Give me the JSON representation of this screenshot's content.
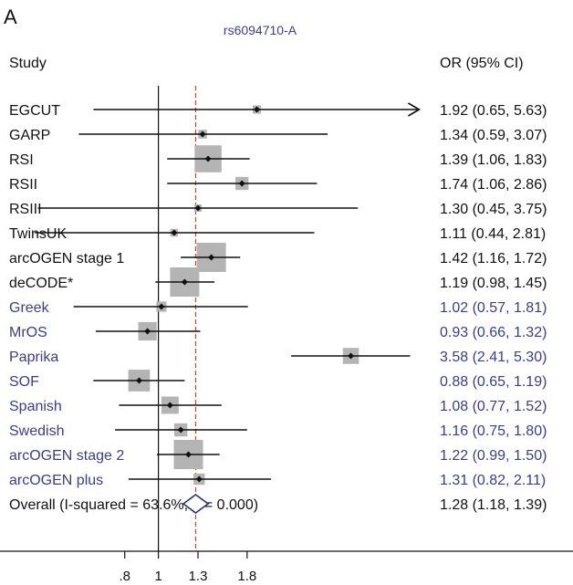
{
  "panel_label": "A",
  "colors": {
    "black_text": "#111111",
    "blue_text": "#3a3d8f",
    "box_fill": "#b4b4b4",
    "ref_line": "#a0524a",
    "diamond": "#2e2f7a"
  },
  "chart_data": {
    "type": "forest",
    "title": "rs6094710-A",
    "column_headers": {
      "study": "Study",
      "estimate": "OR (95% CI)"
    },
    "x_scale": "log",
    "xlim": [
      0.35,
      6.3
    ],
    "xticks": [
      0.8,
      1,
      1.3,
      1.8
    ],
    "xtick_labels": [
      ".8",
      "1",
      "1.3",
      "1.8"
    ],
    "null_value": 1,
    "pooled_reference_line": 1.28,
    "rows": [
      {
        "label": "EGCUT",
        "or": 1.92,
        "lo": 0.65,
        "hi": 5.63,
        "ci_text": "1.92 (0.65, 5.63)",
        "group": "discovery",
        "weight": 0.08,
        "arrow": true
      },
      {
        "label": "GARP",
        "or": 1.34,
        "lo": 0.59,
        "hi": 3.07,
        "ci_text": "1.34 (0.59, 3.07)",
        "group": "discovery",
        "weight": 0.09
      },
      {
        "label": "RSI",
        "or": 1.39,
        "lo": 1.06,
        "hi": 1.83,
        "ci_text": "1.39 (1.06, 1.83)",
        "group": "discovery",
        "weight": 0.85
      },
      {
        "label": "RSII",
        "or": 1.74,
        "lo": 1.06,
        "hi": 2.86,
        "ci_text": "1.74 (1.06, 2.86)",
        "group": "discovery",
        "weight": 0.2
      },
      {
        "label": "RSIII",
        "or": 1.3,
        "lo": 0.45,
        "hi": 3.75,
        "ci_text": "1.30 (0.45, 3.75)",
        "group": "discovery",
        "weight": 0.06
      },
      {
        "label": "TwinsUK",
        "or": 1.11,
        "lo": 0.44,
        "hi": 2.81,
        "ci_text": "1.11 (0.44, 2.81)",
        "group": "discovery",
        "weight": 0.07
      },
      {
        "label": "arcOGEN stage 1",
        "or": 1.42,
        "lo": 1.16,
        "hi": 1.72,
        "ci_text": "1.42 (1.16, 1.72)",
        "group": "discovery",
        "weight": 1.0
      },
      {
        "label": "deCODE*",
        "or": 1.19,
        "lo": 0.98,
        "hi": 1.45,
        "ci_text": "1.19 (0.98, 1.45)",
        "group": "discovery",
        "weight": 1.0
      },
      {
        "label": "Greek",
        "or": 1.02,
        "lo": 0.57,
        "hi": 1.81,
        "ci_text": "1.02 (0.57, 1.81)",
        "group": "replication",
        "weight": 0.12
      },
      {
        "label": "MrOS",
        "or": 0.93,
        "lo": 0.66,
        "hi": 1.32,
        "ci_text": "0.93 (0.66, 1.32)",
        "group": "replication",
        "weight": 0.4
      },
      {
        "label": "Paprika",
        "or": 3.58,
        "lo": 2.41,
        "hi": 5.3,
        "ci_text": "3.58 (2.41, 5.30)",
        "group": "replication",
        "weight": 0.3
      },
      {
        "label": "SOF",
        "or": 0.88,
        "lo": 0.65,
        "hi": 1.19,
        "ci_text": "0.88 (0.65, 1.19)",
        "group": "replication",
        "weight": 0.55
      },
      {
        "label": "Spanish",
        "or": 1.08,
        "lo": 0.77,
        "hi": 1.52,
        "ci_text": "1.08 (0.77, 1.52)",
        "group": "replication",
        "weight": 0.35
      },
      {
        "label": "Swedish",
        "or": 1.16,
        "lo": 0.75,
        "hi": 1.8,
        "ci_text": "1.16 (0.75, 1.80)",
        "group": "replication",
        "weight": 0.2
      },
      {
        "label": "arcOGEN stage 2",
        "or": 1.22,
        "lo": 0.99,
        "hi": 1.5,
        "ci_text": "1.22 (0.99, 1.50)",
        "group": "replication",
        "weight": 1.0
      },
      {
        "label": "arcOGEN plus",
        "or": 1.31,
        "lo": 0.82,
        "hi": 2.11,
        "ci_text": "1.31 (0.82, 2.11)",
        "group": "replication",
        "weight": 0.15
      }
    ],
    "overall": {
      "label": "Overall  (I-squared = 63.6%, p = 0.000)",
      "or": 1.28,
      "lo": 1.18,
      "hi": 1.39,
      "ci_text": "1.28 (1.18, 1.39)"
    }
  }
}
